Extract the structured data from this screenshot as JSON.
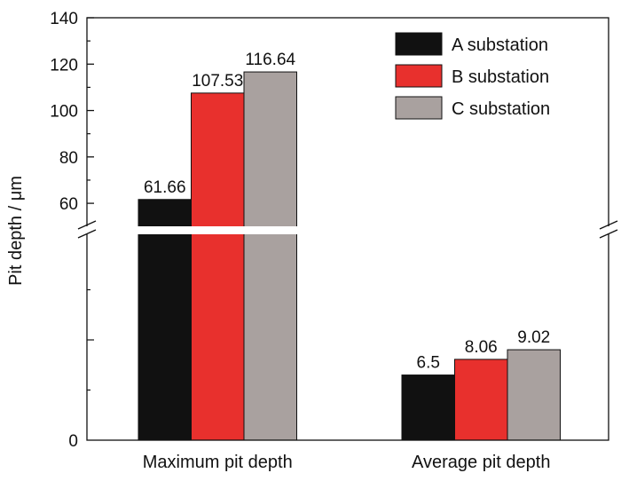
{
  "chart_data": {
    "type": "bar",
    "ylabel": "Pit depth / μm",
    "categories": [
      "Maximum pit depth",
      "Average pit depth"
    ],
    "series": [
      {
        "name": "A substation",
        "color": "#111111",
        "values": [
          61.66,
          6.5
        ]
      },
      {
        "name": "B substation",
        "color": "#e8302d",
        "values": [
          107.53,
          8.06
        ]
      },
      {
        "name": "C substation",
        "color": "#a9a19f",
        "values": [
          116.64,
          9.02
        ]
      }
    ],
    "value_labels": [
      [
        "61.66",
        "6.5"
      ],
      [
        "107.53",
        "8.06"
      ],
      [
        "116.64",
        "9.02"
      ]
    ],
    "y_axis": {
      "broken": true,
      "lower_segment": {
        "range": [
          0,
          20
        ],
        "tick_labels": [
          "0"
        ]
      },
      "upper_segment": {
        "range": [
          52,
          140
        ],
        "tick_labels": [
          "60",
          "80",
          "100",
          "120",
          "140"
        ]
      }
    },
    "legend_position": "top-right",
    "grid": false
  }
}
